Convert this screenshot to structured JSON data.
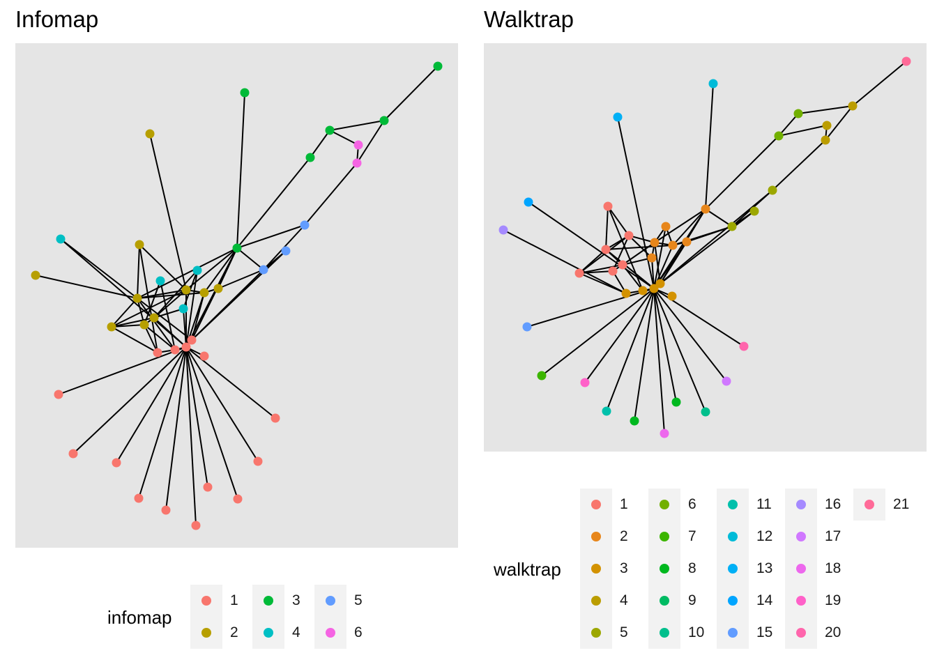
{
  "panels": {
    "left_title": "Infomap",
    "right_title": "Walktrap"
  },
  "legends": {
    "infomap": {
      "title": "infomap",
      "items": [
        {
          "label": "1",
          "color": "#F8766D"
        },
        {
          "label": "2",
          "color": "#B79F00"
        },
        {
          "label": "3",
          "color": "#00BA38"
        },
        {
          "label": "4",
          "color": "#00BFC4"
        },
        {
          "label": "5",
          "color": "#619CFF"
        },
        {
          "label": "6",
          "color": "#F564E3"
        }
      ]
    },
    "walktrap": {
      "title": "walktrap",
      "items": [
        {
          "label": "1",
          "color": "#F8766D"
        },
        {
          "label": "2",
          "color": "#E7861B"
        },
        {
          "label": "3",
          "color": "#D39200"
        },
        {
          "label": "4",
          "color": "#BB9D00"
        },
        {
          "label": "5",
          "color": "#9CA700"
        },
        {
          "label": "6",
          "color": "#72B000"
        },
        {
          "label": "7",
          "color": "#3CB500"
        },
        {
          "label": "8",
          "color": "#00B81F"
        },
        {
          "label": "9",
          "color": "#00BB63"
        },
        {
          "label": "10",
          "color": "#00BF8C"
        },
        {
          "label": "11",
          "color": "#00C0AB"
        },
        {
          "label": "12",
          "color": "#00BBD8"
        },
        {
          "label": "13",
          "color": "#00B0F6"
        },
        {
          "label": "14",
          "color": "#00A5FF"
        },
        {
          "label": "15",
          "color": "#619CFF"
        },
        {
          "label": "16",
          "color": "#A58AFF"
        },
        {
          "label": "17",
          "color": "#D078FF"
        },
        {
          "label": "18",
          "color": "#ED68ED"
        },
        {
          "label": "19",
          "color": "#FF61C9"
        },
        {
          "label": "20",
          "color": "#FF65AC"
        },
        {
          "label": "21",
          "color": "#FF6A98"
        }
      ]
    }
  }
}
